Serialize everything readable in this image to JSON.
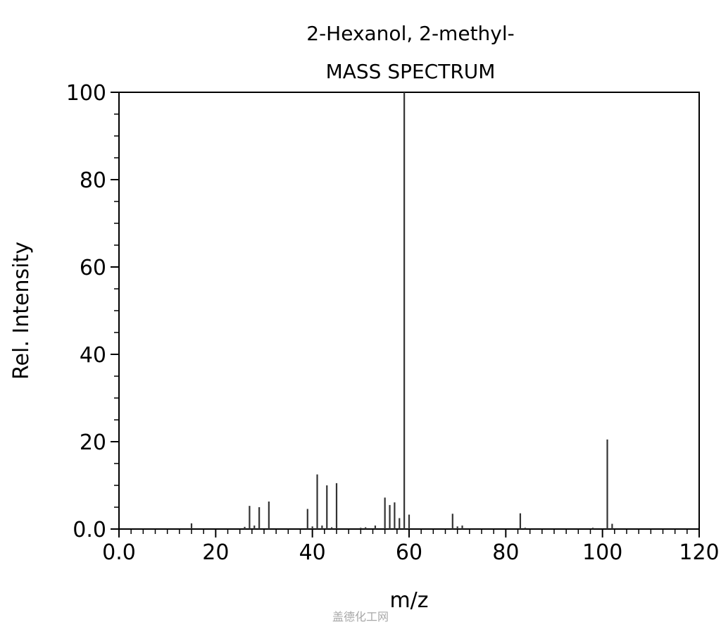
{
  "chart_data": {
    "type": "bar",
    "title": "2-Hexanol, 2-methyl-",
    "subtitle": "MASS SPECTRUM",
    "xlabel": "m/z",
    "ylabel": "Rel. Intensity",
    "xlim": [
      0,
      120
    ],
    "ylim": [
      0,
      100
    ],
    "xticks": [
      0,
      20,
      40,
      60,
      80,
      100,
      120
    ],
    "xtick_labels": [
      "0.0",
      "20",
      "40",
      "60",
      "80",
      "100",
      "120"
    ],
    "yticks": [
      0,
      20,
      40,
      60,
      80,
      100
    ],
    "ytick_labels": [
      "0.0",
      "20",
      "40",
      "60",
      "80",
      "100"
    ],
    "grid": false,
    "peaks": [
      {
        "mz": 15,
        "intensity": 1.3
      },
      {
        "mz": 26,
        "intensity": 0.5
      },
      {
        "mz": 27,
        "intensity": 5.3
      },
      {
        "mz": 28,
        "intensity": 0.8
      },
      {
        "mz": 29,
        "intensity": 5.0
      },
      {
        "mz": 31,
        "intensity": 6.3
      },
      {
        "mz": 39,
        "intensity": 4.6
      },
      {
        "mz": 40,
        "intensity": 0.6
      },
      {
        "mz": 41,
        "intensity": 12.5
      },
      {
        "mz": 42,
        "intensity": 0.8
      },
      {
        "mz": 43,
        "intensity": 10.0
      },
      {
        "mz": 44,
        "intensity": 0.4
      },
      {
        "mz": 45,
        "intensity": 10.5
      },
      {
        "mz": 50,
        "intensity": 0.3
      },
      {
        "mz": 51,
        "intensity": 0.4
      },
      {
        "mz": 53,
        "intensity": 0.8
      },
      {
        "mz": 55,
        "intensity": 7.2
      },
      {
        "mz": 56,
        "intensity": 5.5
      },
      {
        "mz": 57,
        "intensity": 6.1
      },
      {
        "mz": 58,
        "intensity": 2.5
      },
      {
        "mz": 59,
        "intensity": 100
      },
      {
        "mz": 60,
        "intensity": 3.3
      },
      {
        "mz": 69,
        "intensity": 3.5
      },
      {
        "mz": 70,
        "intensity": 0.6
      },
      {
        "mz": 71,
        "intensity": 0.8
      },
      {
        "mz": 83,
        "intensity": 3.6
      },
      {
        "mz": 84,
        "intensity": 0.3
      },
      {
        "mz": 98,
        "intensity": 0.3
      },
      {
        "mz": 101,
        "intensity": 20.5
      },
      {
        "mz": 102,
        "intensity": 1.2
      }
    ]
  },
  "watermark": "盖德化工网"
}
